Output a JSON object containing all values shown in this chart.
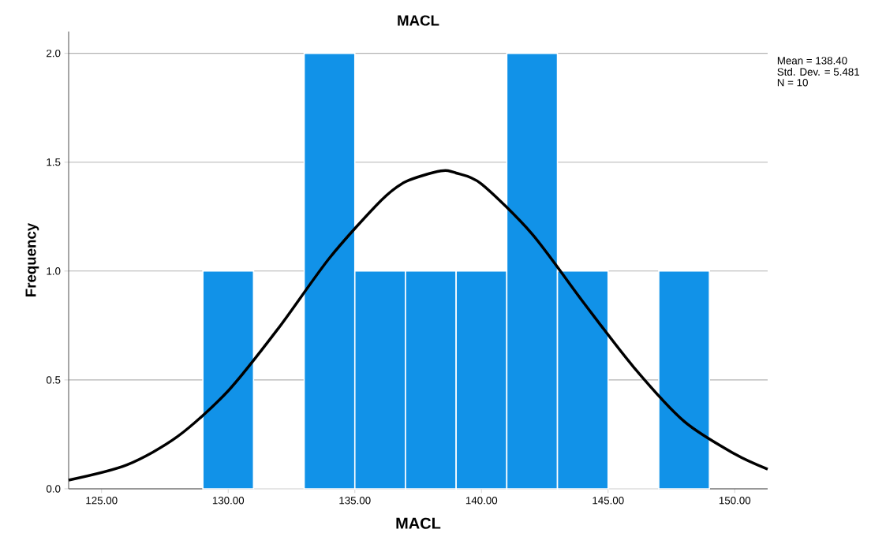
{
  "chart_data": {
    "type": "histogram",
    "title": "MACL",
    "xlabel": "MACL",
    "ylabel": "Frequency",
    "series": [
      {
        "bins": [
          129,
          131,
          133,
          135,
          137,
          139,
          141,
          143,
          145,
          147,
          149
        ],
        "values": [
          1,
          0,
          2,
          1,
          1,
          1,
          2,
          1,
          0,
          1
        ],
        "color": "#1192e8"
      },
      {
        "type": "line",
        "x": [
          123.7,
          126,
          128,
          130,
          132,
          134,
          136,
          137,
          138.4,
          139,
          140,
          142,
          144,
          146,
          148,
          150,
          151.3
        ],
        "values": [
          0.04,
          0.11,
          0.24,
          0.45,
          0.74,
          1.06,
          1.32,
          1.41,
          1.46,
          1.45,
          1.4,
          1.17,
          0.86,
          0.56,
          0.31,
          0.16,
          0.09
        ],
        "color": "#000000"
      }
    ],
    "xlim": [
      123.7,
      151.3
    ],
    "ylim": [
      0,
      2.1
    ],
    "xticks": [
      {
        "value": 125,
        "label": "125.00"
      },
      {
        "value": 130,
        "label": "130.00"
      },
      {
        "value": 135,
        "label": "135.00"
      },
      {
        "value": 140,
        "label": "140.00"
      },
      {
        "value": 145,
        "label": "145.00"
      },
      {
        "value": 150,
        "label": "150.00"
      }
    ],
    "yticks": [
      {
        "value": 0,
        "label": "0.0"
      },
      {
        "value": 0.5,
        "label": "0.5"
      },
      {
        "value": 1,
        "label": "1.0"
      },
      {
        "value": 1.5,
        "label": "1.5"
      },
      {
        "value": 2,
        "label": "2.0"
      }
    ],
    "grid": "y",
    "annotations": [
      "Mean = 138.40",
      "Std. Dev. = 5.481",
      "N = 10"
    ]
  }
}
